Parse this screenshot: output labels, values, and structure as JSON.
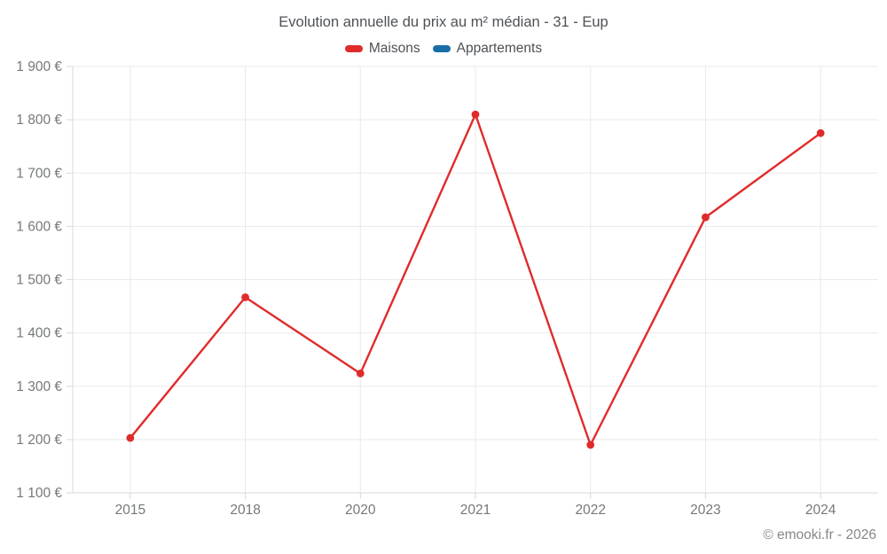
{
  "header": {
    "title": "Evolution annuelle du prix au m² médian - 31 - Eup"
  },
  "legend": {
    "items": [
      {
        "label": "Maisons",
        "color": "#e02b2b"
      },
      {
        "label": "Appartements",
        "color": "#1a6ea8"
      }
    ]
  },
  "chart_data": {
    "type": "line",
    "title": "Evolution annuelle du prix au m² médian - 31 - Eup",
    "x": [
      "2015",
      "2018",
      "2020",
      "2021",
      "2022",
      "2023",
      "2024"
    ],
    "series": [
      {
        "name": "Maisons",
        "color": "#e02b2b",
        "values": [
          1203,
          1467,
          1324,
          1810,
          1190,
          1617,
          1775
        ]
      },
      {
        "name": "Appartements",
        "color": "#1a6ea8",
        "values": []
      }
    ],
    "ylim": [
      1100,
      1900
    ],
    "y_ticks": [
      {
        "value": 1900,
        "label": "1 900 €"
      },
      {
        "value": 1800,
        "label": "1 800 €"
      },
      {
        "value": 1700,
        "label": "1 700 €"
      },
      {
        "value": 1600,
        "label": "1 600 €"
      },
      {
        "value": 1500,
        "label": "1 500 €"
      },
      {
        "value": 1400,
        "label": "1 400 €"
      },
      {
        "value": 1300,
        "label": "1 300 €"
      },
      {
        "value": 1200,
        "label": "1 200 €"
      },
      {
        "value": 1100,
        "label": "1 100 €"
      }
    ],
    "grid": true,
    "legend_position": "top",
    "xlabel": "",
    "ylabel": ""
  },
  "footer": {
    "copyright": "© emooki.fr - 2026"
  },
  "colors": {
    "maisons": "#e02b2b",
    "appartements": "#1a6ea8",
    "gridline": "#e9e9e9",
    "axis": "#d9d9d9",
    "tick_text": "#75787b",
    "title_text": "#4d5156",
    "footer_text": "#85888b"
  }
}
